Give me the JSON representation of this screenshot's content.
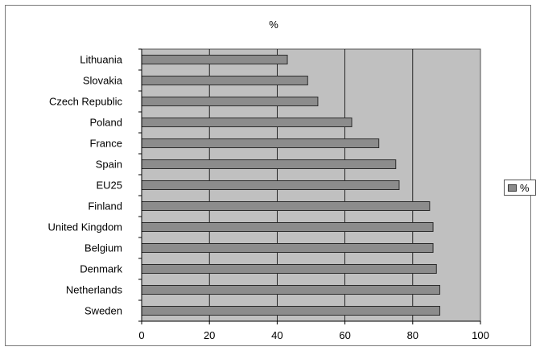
{
  "chart_data": {
    "type": "bar",
    "orientation": "horizontal",
    "title": "%",
    "categories": [
      "Lithuania",
      "Slovakia",
      "Czech Republic",
      "Poland",
      "France",
      "Spain",
      "EU25",
      "Finland",
      "United Kingdom",
      "Belgium",
      "Denmark",
      "Netherlands",
      "Sweden"
    ],
    "series": [
      {
        "name": "%",
        "values": [
          43,
          49,
          52,
          62,
          70,
          75,
          76,
          85,
          86,
          86,
          87,
          88,
          88
        ]
      }
    ],
    "xlim": [
      0,
      100
    ],
    "x_ticks": [
      0,
      20,
      40,
      60,
      80,
      100
    ],
    "grid": "vertical",
    "legend_position": "right",
    "colors": {
      "plot_background": "#c0c0c0",
      "bar_fill": "#8c8c8c",
      "bar_border": "#2b2b2b",
      "gridline": "#000000"
    }
  }
}
